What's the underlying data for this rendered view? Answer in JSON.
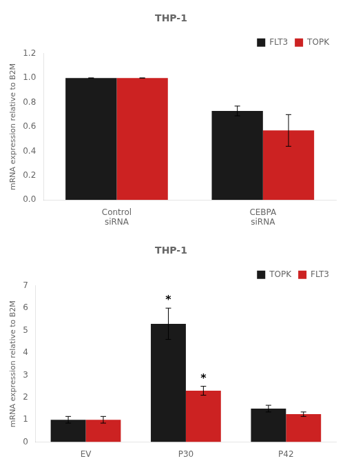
{
  "chart_data": [
    {
      "type": "bar",
      "title": "THP-1",
      "categories": [
        "Control\nsiRNA",
        "CEBPA\nsiRNA"
      ],
      "series": [
        {
          "name": "FLT3",
          "color": "#1a1a1a",
          "values": [
            1.0,
            0.73
          ],
          "errors": [
            0.0,
            0.04
          ]
        },
        {
          "name": "TOPK",
          "color": "#cc2222",
          "values": [
            1.0,
            0.57
          ],
          "errors": [
            0.0,
            0.13
          ]
        }
      ],
      "ylabel": "mRNA expression relative to B2M",
      "ylim": [
        0,
        1.2
      ],
      "yticks": [
        {
          "value": 0,
          "label": "0.0"
        },
        0.2,
        0.4,
        0.6,
        0.8,
        {
          "value": 1.0,
          "label": "1.0"
        },
        1.2
      ],
      "legend": "upper right",
      "grid": false
    },
    {
      "type": "bar",
      "title": "THP-1",
      "categories": [
        "EV",
        "P30",
        "P42"
      ],
      "series": [
        {
          "name": "TOPK",
          "color": "#1a1a1a",
          "values": [
            1.0,
            5.3,
            1.5
          ],
          "errors": [
            0.15,
            0.7,
            0.15
          ]
        },
        {
          "name": "FLT3",
          "color": "#cc2222",
          "values": [
            1.0,
            2.3,
            1.25
          ],
          "errors": [
            0.15,
            0.2,
            0.1
          ]
        }
      ],
      "ylabel": "mRNA expression relative to B2M",
      "ylim": [
        0,
        7
      ],
      "yticks": [
        0,
        1,
        2,
        3,
        4,
        5,
        6,
        7
      ],
      "legend": "upper right",
      "grid": false,
      "annotations": [
        {
          "text": "*",
          "category": "P30",
          "series": "TOPK"
        },
        {
          "text": "*",
          "category": "P30",
          "series": "FLT3"
        }
      ]
    }
  ]
}
